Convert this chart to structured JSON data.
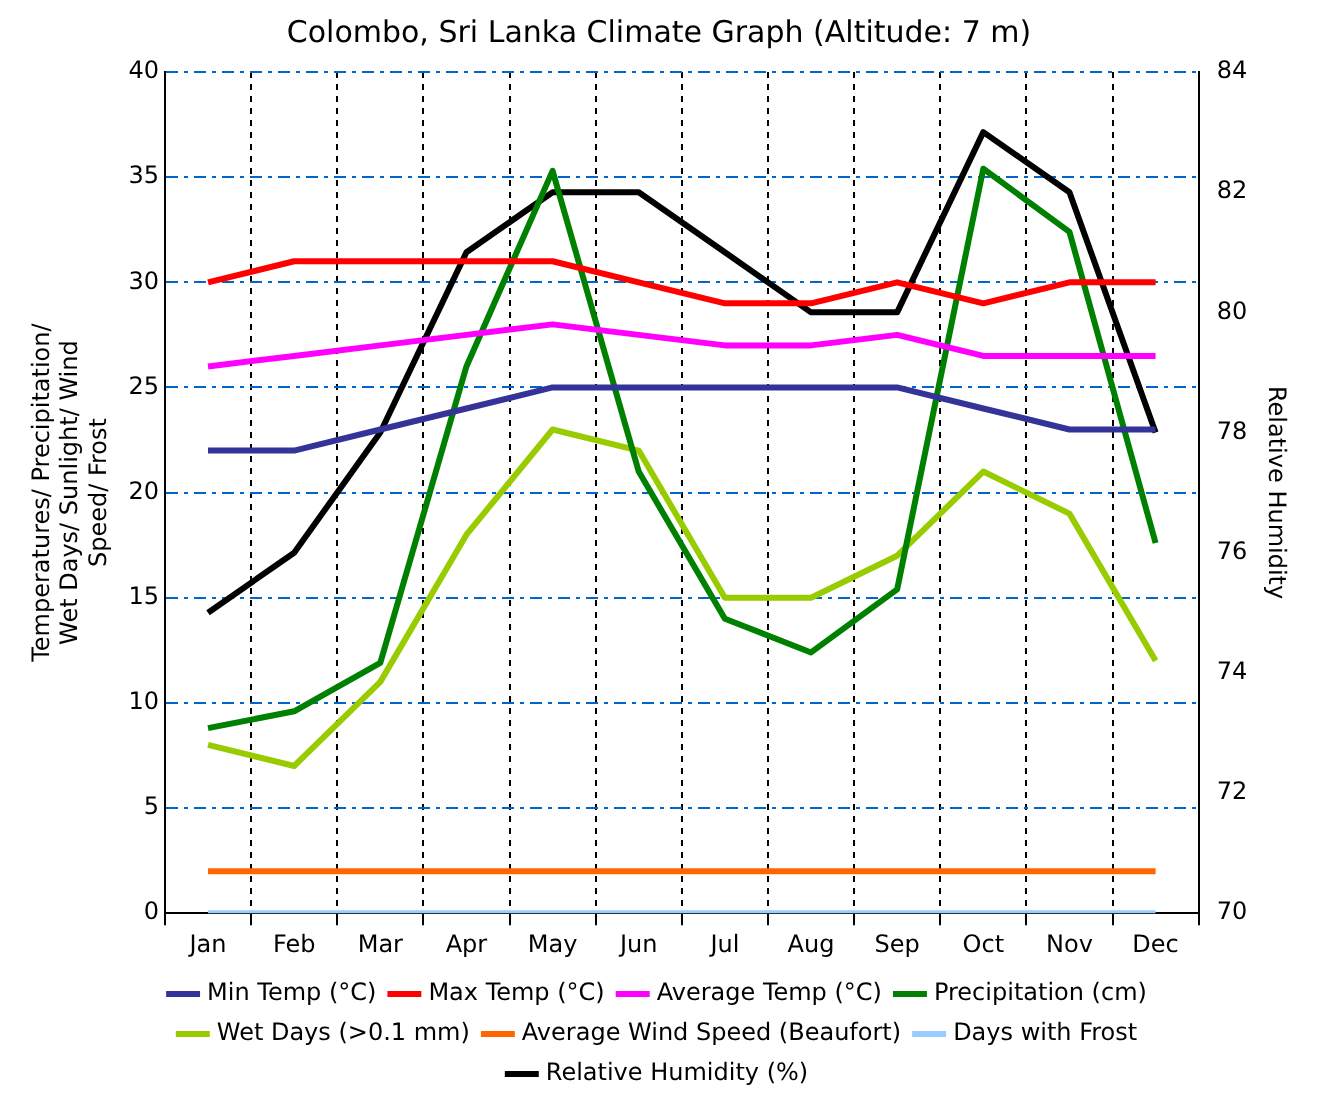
{
  "chart_data": {
    "type": "line",
    "title": "Colombo, Sri Lanka Climate Graph (Altitude: 7 m)",
    "ylabel": "Temperatures/ Precipitation/ Wet Days/ Sunlight/ Wind Speed/ Frost",
    "y2label": "Relative Humidity",
    "categories": [
      "Jan",
      "Feb",
      "Mar",
      "Apr",
      "May",
      "Jun",
      "Jul",
      "Aug",
      "Sep",
      "Oct",
      "Nov",
      "Dec"
    ],
    "series": [
      {
        "name": "Min Temp (°C)",
        "color": "#333399",
        "values": [
          22,
          22,
          23,
          24,
          25,
          25,
          25,
          25,
          25,
          24,
          23,
          23
        ]
      },
      {
        "name": "Max Temp (°C)",
        "color": "#ff0000",
        "values": [
          30,
          31,
          31,
          31,
          31,
          30,
          29,
          29,
          30,
          29,
          30,
          30
        ]
      },
      {
        "name": "Average Temp (°C)",
        "color": "#ff00ff",
        "values": [
          26,
          26.5,
          27,
          27.5,
          28,
          27.5,
          27,
          27,
          27.5,
          26.5,
          26.5,
          26.5
        ]
      },
      {
        "name": "Precipitation (cm)",
        "color": "#008000",
        "values": [
          8.8,
          9.6,
          11.9,
          26,
          35.3,
          21,
          14,
          12.4,
          15.4,
          35.4,
          32.4,
          17.6
        ]
      },
      {
        "name": "Wet Days (>0.1 mm)",
        "color": "#99cc00",
        "values": [
          8,
          7,
          11,
          18,
          23,
          22,
          15,
          15,
          17,
          21,
          19,
          12
        ]
      },
      {
        "name": "Average Wind Speed (Beaufort)",
        "color": "#ff6600",
        "values": [
          2,
          2,
          2,
          2,
          2,
          2,
          2,
          2,
          2,
          2,
          2,
          2
        ]
      },
      {
        "name": "Days with Frost",
        "color": "#99ccff",
        "values": [
          0,
          0,
          0,
          0,
          0,
          0,
          0,
          0,
          0,
          0,
          0,
          0
        ]
      },
      {
        "name": "Relative Humidity (%)",
        "color": "#000000",
        "axis": "y2",
        "values": [
          75,
          76,
          78,
          81,
          82,
          82,
          81,
          80,
          80,
          83,
          82,
          78
        ]
      }
    ],
    "ylim": [
      0,
      40
    ],
    "yticks": [
      0,
      5,
      10,
      15,
      20,
      25,
      30,
      35,
      40
    ],
    "y2lim": [
      70,
      84
    ],
    "y2ticks": [
      70,
      72,
      74,
      76,
      78,
      80,
      82,
      84
    ],
    "grid": true,
    "legend": "bottom",
    "marker": "none",
    "line_style": "solid"
  }
}
